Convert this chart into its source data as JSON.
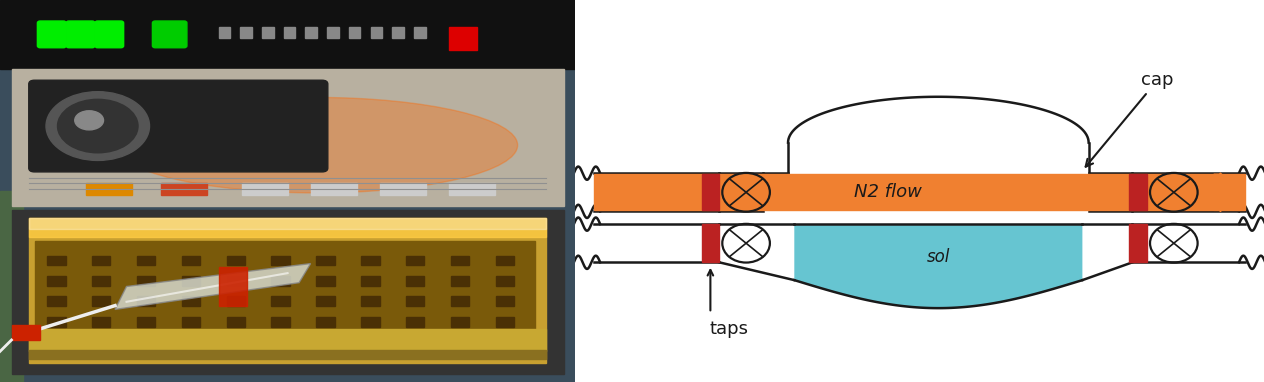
{
  "bg_color": "#ffffff",
  "diagram": {
    "orange_color": "#f08030",
    "cyan_color": "#55bfcc",
    "red_color": "#bb2222",
    "dark_color": "#1a1a1a",
    "n2_flow_label": "N2 flow",
    "sol_label": "sol",
    "cap_label": "cap",
    "taps_label": "taps"
  },
  "photo": {
    "top_bar_color": "#111111",
    "panel_color": "#c0b8a8",
    "knob_color": "#444444",
    "interior_color": "#c8a040",
    "interior_dark": "#8a6010",
    "glow_color": "#ff7722",
    "green_led": "#22ff22",
    "red_led": "#dd1111",
    "orange_button": "#ff8800",
    "silver": "#b0b0b0",
    "flask_color": "#cccccc",
    "red_clamp": "#cc2200",
    "tube_color": "#dddddd",
    "shelf_color": "#c8a832",
    "hole_color": "#805010"
  }
}
